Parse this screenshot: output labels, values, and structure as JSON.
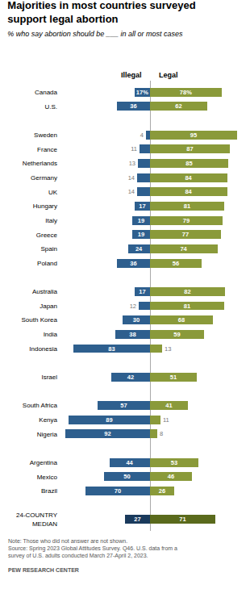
{
  "chart_data": {
    "type": "bar",
    "orientation": "horizontal",
    "title": "Majorities in most countries surveyed\nsupport legal abortion",
    "subtitle": "% who say abortion should be ___ in all or most cases",
    "categories": [
      "Canada",
      "U.S.",
      null,
      "Sweden",
      "France",
      "Netherlands",
      "Germany",
      "UK",
      "Hungary",
      "Italy",
      "Greece",
      "Spain",
      "Poland",
      null,
      "Australia",
      "Japan",
      "South Korea",
      "India",
      "Indonesia",
      null,
      "Israel",
      null,
      "South Africa",
      "Kenya",
      "Nigeria",
      null,
      "Argentina",
      "Mexico",
      "Brazil",
      null,
      "24-COUNTRY\nMEDIAN"
    ],
    "series": [
      {
        "name": "Illegal",
        "values": [
          17,
          36,
          null,
          4,
          11,
          13,
          14,
          14,
          17,
          19,
          19,
          24,
          36,
          null,
          17,
          12,
          30,
          38,
          83,
          null,
          42,
          null,
          57,
          89,
          92,
          null,
          44,
          50,
          70,
          null,
          27
        ],
        "value_labels": [
          "17%",
          "36",
          null,
          "4",
          "11",
          "13",
          "14",
          "14",
          "17",
          "19",
          "19",
          "24",
          "36",
          null,
          "17",
          "12",
          "30",
          "38",
          "83",
          null,
          "42",
          null,
          "57",
          "89",
          "92",
          null,
          "44",
          "50",
          "70",
          null,
          "27"
        ],
        "colors": [
          "#2E5F8E",
          "#2E5F8E",
          null,
          "#2E5F8E",
          "#2E5F8E",
          "#2E5F8E",
          "#2E5F8E",
          "#2E5F8E",
          "#2E5F8E",
          "#2E5F8E",
          "#2E5F8E",
          "#2E5F8E",
          "#2E5F8E",
          null,
          "#2E5F8E",
          "#2E5F8E",
          "#2E5F8E",
          "#2E5F8E",
          "#2E5F8E",
          null,
          "#2E5F8E",
          null,
          "#2E5F8E",
          "#2E5F8E",
          "#2E5F8E",
          null,
          "#2E5F8E",
          "#2E5F8E",
          "#2E5F8E",
          null,
          "#1A3A5C"
        ]
      },
      {
        "name": "Legal",
        "values": [
          78,
          62,
          null,
          95,
          87,
          85,
          84,
          84,
          81,
          79,
          77,
          74,
          56,
          null,
          82,
          81,
          68,
          59,
          13,
          null,
          51,
          null,
          41,
          11,
          8,
          null,
          53,
          46,
          26,
          null,
          71
        ],
        "value_labels": [
          "78%",
          "62",
          null,
          "95",
          "87",
          "85",
          "84",
          "84",
          "81",
          "79",
          "77",
          "74",
          "56",
          null,
          "82",
          "81",
          "68",
          "59",
          "13",
          null,
          "51",
          null,
          "41",
          "11",
          "8",
          null,
          "53",
          "46",
          "26",
          null,
          "71"
        ],
        "colors": [
          "#8A9A3A",
          "#8A9A3A",
          null,
          "#8A9A3A",
          "#8A9A3A",
          "#8A9A3A",
          "#8A9A3A",
          "#8A9A3A",
          "#8A9A3A",
          "#8A9A3A",
          "#8A9A3A",
          "#8A9A3A",
          "#8A9A3A",
          null,
          "#8A9A3A",
          "#8A9A3A",
          "#8A9A3A",
          "#8A9A3A",
          "#8A9A3A",
          null,
          "#8A9A3A",
          null,
          "#8A9A3A",
          "#8A9A3A",
          "#8A9A3A",
          null,
          "#8A9A3A",
          "#8A9A3A",
          "#8A9A3A",
          null,
          "#5A6A1C"
        ]
      }
    ],
    "xlim": [
      0,
      100
    ],
    "data_labels": true,
    "tick_labels": "y",
    "grid": false,
    "note": "Note: Those who did not answer are not shown.\nSource: Spring 2023 Global Attitudes Survey. Q46. U.S. data from a\nsurvey of U.S. adults conducted March 27-April 2, 2023.",
    "source": "PEW RESEARCH CENTER"
  }
}
